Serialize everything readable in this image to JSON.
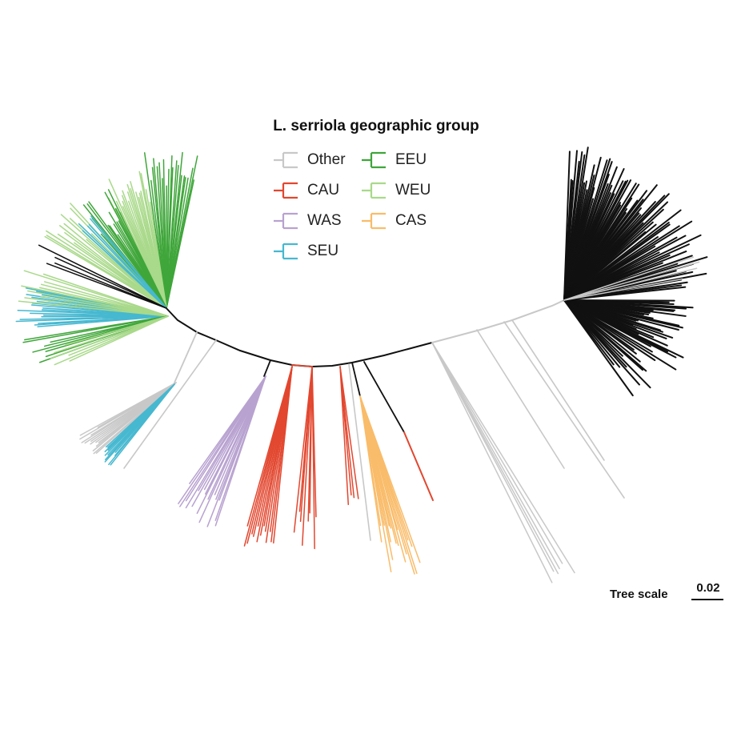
{
  "legend": {
    "title": "L. serriola geographic group",
    "items": [
      {
        "label": "Other",
        "color": "#c8c8c8"
      },
      {
        "label": "EEU",
        "color": "#3fa63a"
      },
      {
        "label": "CAU",
        "color": "#e2472f"
      },
      {
        "label": "WEU",
        "color": "#a9d98a"
      },
      {
        "label": "WAS",
        "color": "#b8a2d0"
      },
      {
        "label": "CAS",
        "color": "#f9bc6a"
      },
      {
        "label": "SEU",
        "color": "#46b8d0"
      }
    ]
  },
  "tree_scale": {
    "label": "Tree scale",
    "value": "0.02"
  },
  "colors": {
    "backbone": "#111111",
    "other": "#c8c8c8"
  }
}
